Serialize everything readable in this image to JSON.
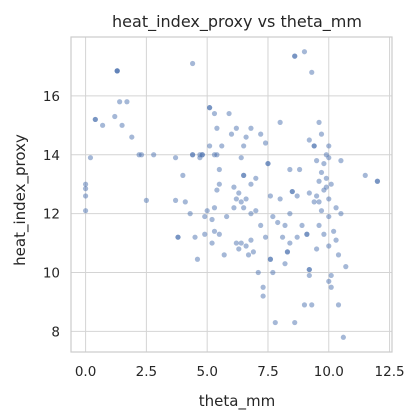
{
  "chart_data": {
    "type": "scatter",
    "title": "heat_index_proxy vs theta_mm",
    "xlabel": "theta_mm",
    "ylabel": "heat_index_proxy",
    "xlim": [
      -0.6,
      12.6
    ],
    "ylim": [
      7.3,
      18.0
    ],
    "x_ticks": [
      0,
      2.5,
      5,
      7.5,
      10,
      12.5
    ],
    "x_tick_labels": [
      "0.0",
      "2.5",
      "5.0",
      "7.5",
      "10.0",
      "12.5"
    ],
    "y_ticks": [
      8,
      10,
      12,
      14,
      16
    ],
    "y_tick_labels": [
      "8",
      "10",
      "12",
      "14",
      "16"
    ],
    "grid": true,
    "marker_color": "#4c72b0",
    "marker_opacity": 0.5,
    "points": [
      {
        "x": 0.0,
        "y": 13.0
      },
      {
        "x": 0.0,
        "y": 12.85
      },
      {
        "x": 0.0,
        "y": 12.6
      },
      {
        "x": 0.0,
        "y": 12.1
      },
      {
        "x": 0.2,
        "y": 13.9
      },
      {
        "x": 0.4,
        "y": 15.2
      },
      {
        "x": 0.4,
        "y": 15.2
      },
      {
        "x": 0.7,
        "y": 15.0
      },
      {
        "x": 1.3,
        "y": 16.85
      },
      {
        "x": 1.3,
        "y": 16.85
      },
      {
        "x": 1.3,
        "y": 16.85
      },
      {
        "x": 1.2,
        "y": 15.3
      },
      {
        "x": 1.4,
        "y": 15.8
      },
      {
        "x": 1.5,
        "y": 15.0
      },
      {
        "x": 1.7,
        "y": 15.8
      },
      {
        "x": 1.9,
        "y": 14.6
      },
      {
        "x": 2.2,
        "y": 14.0
      },
      {
        "x": 2.3,
        "y": 14.0
      },
      {
        "x": 2.5,
        "y": 12.45
      },
      {
        "x": 2.8,
        "y": 14.0
      },
      {
        "x": 3.7,
        "y": 13.9
      },
      {
        "x": 3.7,
        "y": 12.45
      },
      {
        "x": 3.8,
        "y": 11.2
      },
      {
        "x": 3.8,
        "y": 11.2
      },
      {
        "x": 4.0,
        "y": 13.3
      },
      {
        "x": 4.1,
        "y": 12.4
      },
      {
        "x": 4.3,
        "y": 12.0
      },
      {
        "x": 4.4,
        "y": 17.1
      },
      {
        "x": 4.4,
        "y": 14.0
      },
      {
        "x": 4.4,
        "y": 14.0
      },
      {
        "x": 4.5,
        "y": 11.2
      },
      {
        "x": 4.6,
        "y": 10.45
      },
      {
        "x": 4.7,
        "y": 14.0
      },
      {
        "x": 4.7,
        "y": 13.9
      },
      {
        "x": 4.8,
        "y": 14.0
      },
      {
        "x": 4.8,
        "y": 14.0
      },
      {
        "x": 4.9,
        "y": 11.9
      },
      {
        "x": 4.9,
        "y": 11.3
      },
      {
        "x": 5.0,
        "y": 12.1
      },
      {
        "x": 5.1,
        "y": 15.6
      },
      {
        "x": 5.1,
        "y": 15.6
      },
      {
        "x": 5.1,
        "y": 14.3
      },
      {
        "x": 5.2,
        "y": 11.8
      },
      {
        "x": 5.2,
        "y": 11.0
      },
      {
        "x": 5.3,
        "y": 15.4
      },
      {
        "x": 5.3,
        "y": 14.0
      },
      {
        "x": 5.3,
        "y": 12.2
      },
      {
        "x": 5.3,
        "y": 11.4
      },
      {
        "x": 5.4,
        "y": 14.9
      },
      {
        "x": 5.4,
        "y": 12.8
      },
      {
        "x": 5.4,
        "y": 14.0
      },
      {
        "x": 5.5,
        "y": 13.5
      },
      {
        "x": 5.5,
        "y": 13.0
      },
      {
        "x": 5.5,
        "y": 11.3
      },
      {
        "x": 5.6,
        "y": 14.3
      },
      {
        "x": 5.7,
        "y": 10.6
      },
      {
        "x": 5.8,
        "y": 11.9
      },
      {
        "x": 5.9,
        "y": 15.4
      },
      {
        "x": 6.0,
        "y": 14.7
      },
      {
        "x": 6.1,
        "y": 12.9
      },
      {
        "x": 6.1,
        "y": 12.2
      },
      {
        "x": 6.2,
        "y": 14.9
      },
      {
        "x": 6.2,
        "y": 12.5
      },
      {
        "x": 6.2,
        "y": 11.0
      },
      {
        "x": 6.3,
        "y": 12.7
      },
      {
        "x": 6.3,
        "y": 10.8
      },
      {
        "x": 6.4,
        "y": 13.9
      },
      {
        "x": 6.4,
        "y": 12.4
      },
      {
        "x": 6.4,
        "y": 11.0
      },
      {
        "x": 6.5,
        "y": 14.3
      },
      {
        "x": 6.5,
        "y": 13.3
      },
      {
        "x": 6.5,
        "y": 13.3
      },
      {
        "x": 6.5,
        "y": 12.2
      },
      {
        "x": 6.6,
        "y": 14.6
      },
      {
        "x": 6.6,
        "y": 12.5
      },
      {
        "x": 6.6,
        "y": 10.9
      },
      {
        "x": 6.7,
        "y": 10.6
      },
      {
        "x": 6.8,
        "y": 14.9
      },
      {
        "x": 6.8,
        "y": 13.0
      },
      {
        "x": 6.8,
        "y": 12.0
      },
      {
        "x": 6.8,
        "y": 11.1
      },
      {
        "x": 6.9,
        "y": 10.7
      },
      {
        "x": 7.0,
        "y": 13.2
      },
      {
        "x": 7.0,
        "y": 12.1
      },
      {
        "x": 7.1,
        "y": 10.0
      },
      {
        "x": 7.2,
        "y": 14.7
      },
      {
        "x": 7.2,
        "y": 11.6
      },
      {
        "x": 7.3,
        "y": 9.5
      },
      {
        "x": 7.3,
        "y": 9.2
      },
      {
        "x": 7.4,
        "y": 14.4
      },
      {
        "x": 7.4,
        "y": 11.2
      },
      {
        "x": 7.5,
        "y": 13.7
      },
      {
        "x": 7.5,
        "y": 13.7
      },
      {
        "x": 7.6,
        "y": 12.6
      },
      {
        "x": 7.6,
        "y": 10.45
      },
      {
        "x": 7.6,
        "y": 10.45
      },
      {
        "x": 7.7,
        "y": 11.9
      },
      {
        "x": 7.7,
        "y": 10.0
      },
      {
        "x": 7.8,
        "y": 8.3
      },
      {
        "x": 7.9,
        "y": 11.7
      },
      {
        "x": 8.0,
        "y": 15.1
      },
      {
        "x": 8.0,
        "y": 12.5
      },
      {
        "x": 8.1,
        "y": 11.2
      },
      {
        "x": 8.2,
        "y": 11.6
      },
      {
        "x": 8.2,
        "y": 10.3
      },
      {
        "x": 8.3,
        "y": 10.7
      },
      {
        "x": 8.3,
        "y": 10.7
      },
      {
        "x": 8.4,
        "y": 13.5
      },
      {
        "x": 8.4,
        "y": 12.0
      },
      {
        "x": 8.4,
        "y": 11.0
      },
      {
        "x": 8.5,
        "y": 12.75
      },
      {
        "x": 8.5,
        "y": 12.75
      },
      {
        "x": 8.6,
        "y": 17.35
      },
      {
        "x": 8.6,
        "y": 17.35
      },
      {
        "x": 8.6,
        "y": 8.3
      },
      {
        "x": 8.7,
        "y": 12.6
      },
      {
        "x": 8.7,
        "y": 11.2
      },
      {
        "x": 8.8,
        "y": 13.5
      },
      {
        "x": 8.9,
        "y": 11.6
      },
      {
        "x": 9.0,
        "y": 17.5
      },
      {
        "x": 9.0,
        "y": 8.9
      },
      {
        "x": 9.1,
        "y": 11.3
      },
      {
        "x": 9.1,
        "y": 11.3
      },
      {
        "x": 9.2,
        "y": 14.5
      },
      {
        "x": 9.2,
        "y": 12.7
      },
      {
        "x": 9.2,
        "y": 10.1
      },
      {
        "x": 9.2,
        "y": 10.1
      },
      {
        "x": 9.2,
        "y": 9.9
      },
      {
        "x": 9.3,
        "y": 16.8
      },
      {
        "x": 9.3,
        "y": 8.9
      },
      {
        "x": 9.4,
        "y": 14.3
      },
      {
        "x": 9.4,
        "y": 14.3
      },
      {
        "x": 9.4,
        "y": 12.4
      },
      {
        "x": 9.5,
        "y": 13.8
      },
      {
        "x": 9.5,
        "y": 12.6
      },
      {
        "x": 9.5,
        "y": 10.8
      },
      {
        "x": 9.6,
        "y": 15.1
      },
      {
        "x": 9.6,
        "y": 13.1
      },
      {
        "x": 9.6,
        "y": 12.4
      },
      {
        "x": 9.6,
        "y": 11.6
      },
      {
        "x": 9.7,
        "y": 14.7
      },
      {
        "x": 9.7,
        "y": 13.4
      },
      {
        "x": 9.7,
        "y": 12.1
      },
      {
        "x": 9.8,
        "y": 13.7
      },
      {
        "x": 9.8,
        "y": 12.8
      },
      {
        "x": 9.8,
        "y": 11.3
      },
      {
        "x": 9.9,
        "y": 14.0
      },
      {
        "x": 9.9,
        "y": 13.2
      },
      {
        "x": 9.9,
        "y": 12.9
      },
      {
        "x": 10.0,
        "y": 14.3
      },
      {
        "x": 10.0,
        "y": 13.9
      },
      {
        "x": 10.0,
        "y": 12.5
      },
      {
        "x": 10.0,
        "y": 11.9
      },
      {
        "x": 10.0,
        "y": 10.9
      },
      {
        "x": 10.0,
        "y": 9.7
      },
      {
        "x": 10.1,
        "y": 13.0
      },
      {
        "x": 10.1,
        "y": 9.9
      },
      {
        "x": 10.1,
        "y": 9.5
      },
      {
        "x": 10.2,
        "y": 11.4
      },
      {
        "x": 10.3,
        "y": 12.2
      },
      {
        "x": 10.3,
        "y": 11.1
      },
      {
        "x": 10.4,
        "y": 10.6
      },
      {
        "x": 10.4,
        "y": 8.9
      },
      {
        "x": 10.5,
        "y": 13.8
      },
      {
        "x": 10.5,
        "y": 12.0
      },
      {
        "x": 10.6,
        "y": 7.8
      },
      {
        "x": 10.7,
        "y": 10.2
      },
      {
        "x": 11.5,
        "y": 13.3
      },
      {
        "x": 12.0,
        "y": 13.1
      },
      {
        "x": 12.0,
        "y": 13.1
      }
    ]
  }
}
